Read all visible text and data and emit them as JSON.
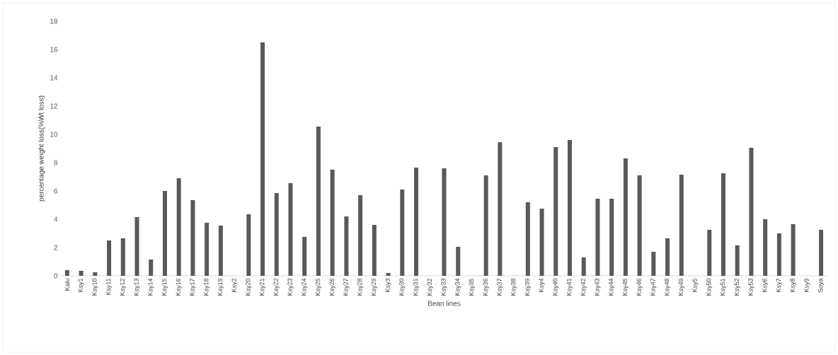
{
  "chart_data": {
    "type": "bar",
    "xlabel": "Bean lines",
    "ylabel": "percentage weight loss(%Wt loss)",
    "categories": [
      "Kalu",
      "Ksy1",
      "Ksy10",
      "Ksy11",
      "Ksy12",
      "Ksy13",
      "Ksy14",
      "Ksy15",
      "Ksy16",
      "Ksy17",
      "Ksy18",
      "Ksy19",
      "Ksy2",
      "Ksy20",
      "Ksy21",
      "Ksy22",
      "Ksy23",
      "Ksy24",
      "Ksy25",
      "Ksy26",
      "Ksy27",
      "Ksy28",
      "Ksy29",
      "Ksy3",
      "Ksy30",
      "Ksy31",
      "Ksy32",
      "Ksy33",
      "Ksy34",
      "Ksy35",
      "Ksy36",
      "Ksy37",
      "Ksy38",
      "Ksy39",
      "Ksy4",
      "Ksy40",
      "Ksy41",
      "Ksy42",
      "Ksy43",
      "Ksy44",
      "Ksy45",
      "Ksy46",
      "Ksy47",
      "Ksy48",
      "Ksy49",
      "Ksy5",
      "Ksy50",
      "Ksy51",
      "Ksy52",
      "Ksy53",
      "Ksy6",
      "Ksy7",
      "Ksy8",
      "Ksy9",
      "Soya"
    ],
    "values": [
      0.4,
      0.35,
      0.25,
      2.5,
      2.65,
      4.15,
      1.15,
      6.0,
      6.9,
      5.35,
      3.75,
      3.55,
      0,
      4.35,
      16.5,
      5.85,
      6.55,
      2.75,
      10.55,
      7.5,
      4.2,
      5.7,
      3.6,
      0.2,
      6.1,
      7.65,
      0,
      7.6,
      2.05,
      0,
      7.1,
      9.45,
      0,
      5.2,
      4.75,
      9.1,
      9.6,
      1.3,
      5.45,
      5.45,
      8.3,
      7.1,
      1.7,
      2.65,
      7.15,
      0,
      3.25,
      7.25,
      2.15,
      9.05,
      4.0,
      3.0,
      3.65,
      0,
      3.25
    ],
    "color": "#595959",
    "ylim": [
      0,
      18
    ],
    "yticks": [
      0,
      2,
      4,
      6,
      8,
      10,
      12,
      14,
      16,
      18
    ]
  }
}
